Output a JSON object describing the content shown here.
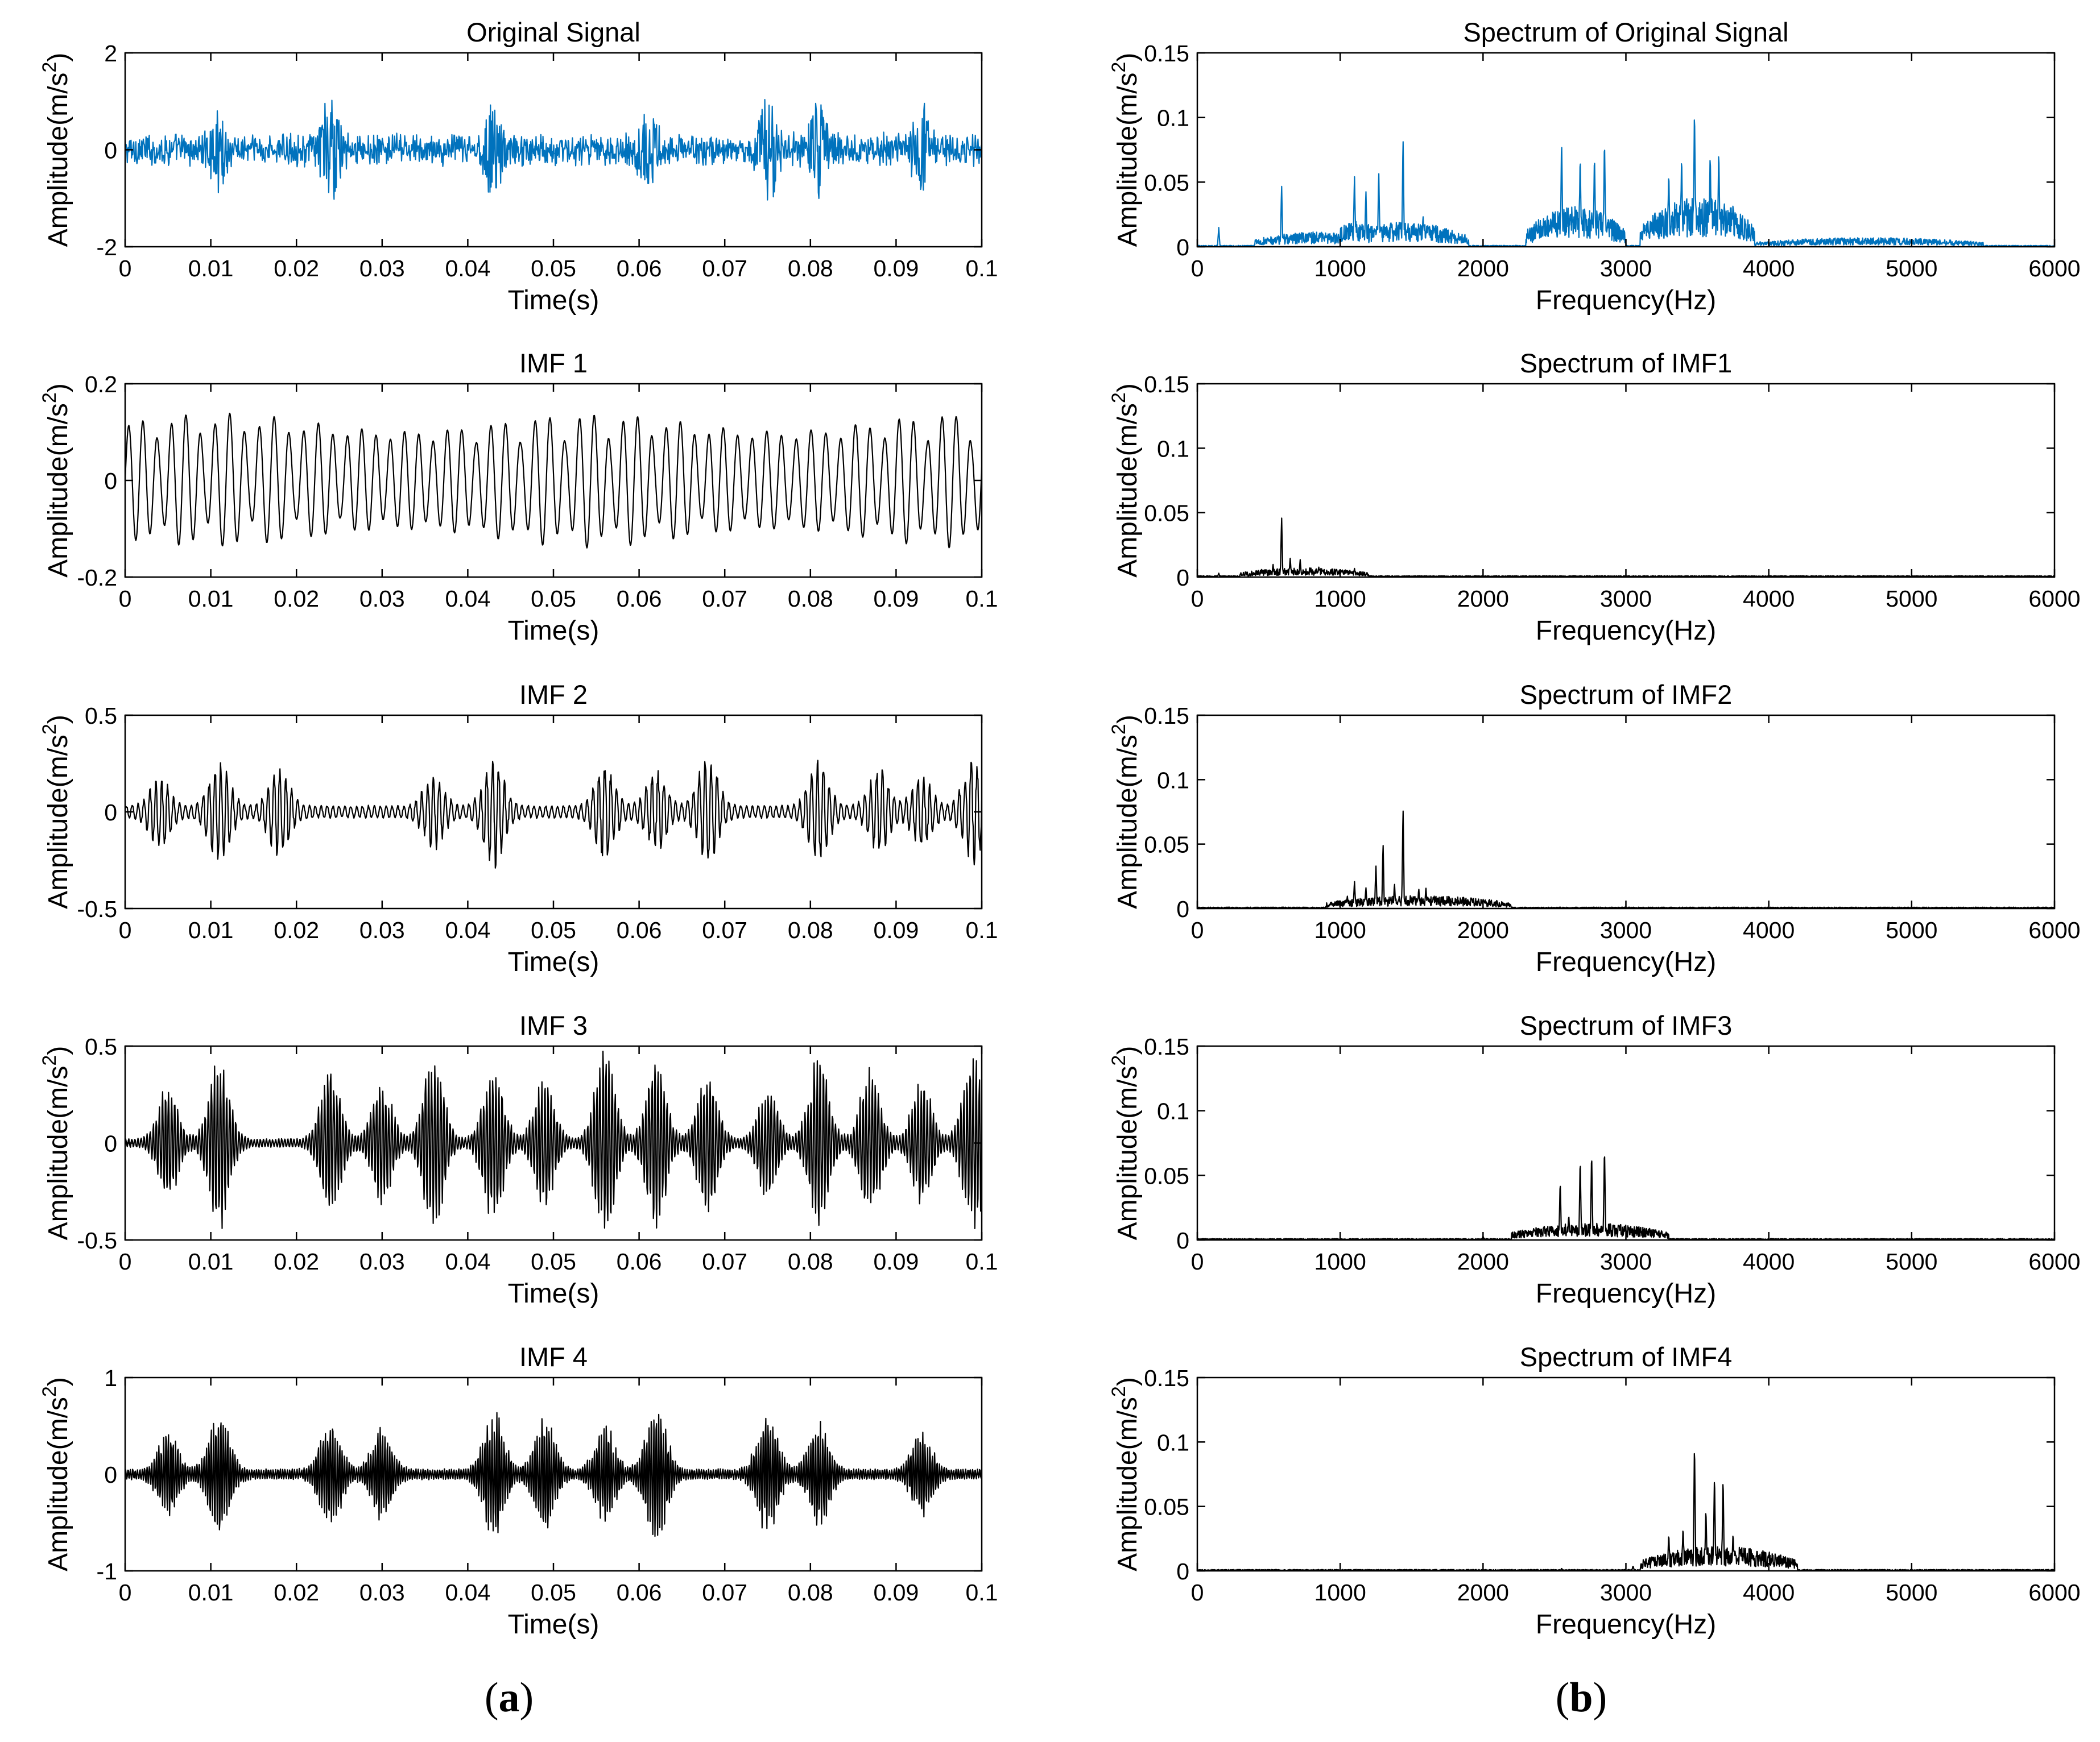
{
  "figure": {
    "panel_labels": {
      "a": "(a)",
      "b": "(b)",
      "a_letter": "a",
      "b_letter": "b"
    }
  },
  "colors": {
    "original": "#0072BD",
    "imf": "#000000"
  },
  "chart_data": [
    {
      "id": "time-original",
      "type": "line",
      "column": "a",
      "title": "Original Signal",
      "xlabel": "Time(s)",
      "ylabel": "Amplitude(m/s^2)",
      "xlim": [
        0,
        0.1
      ],
      "ylim": [
        -2,
        2
      ],
      "xticks": [
        "0",
        "0.01",
        "0.02",
        "0.03",
        "0.04",
        "0.05",
        "0.06",
        "0.07",
        "0.08",
        "0.09",
        "0.1"
      ],
      "yticks": [
        "-2",
        "0",
        "2"
      ],
      "color": "#0072BD",
      "signal": {
        "kind": "impulsive",
        "bursts": [
          0.011,
          0.024,
          0.043,
          0.061,
          0.075,
          0.081,
          0.093
        ],
        "peak": 1.3,
        "baseline": 0.25
      }
    },
    {
      "id": "time-imf1",
      "type": "line",
      "column": "a",
      "title": "IMF 1",
      "xlabel": "Time(s)",
      "ylabel": "Amplitude(m/s^2)",
      "xlim": [
        0,
        0.1
      ],
      "ylim": [
        -0.2,
        0.2
      ],
      "xticks": [
        "0",
        "0.01",
        "0.02",
        "0.03",
        "0.04",
        "0.05",
        "0.06",
        "0.07",
        "0.08",
        "0.09",
        "0.1"
      ],
      "yticks": [
        "-0.2",
        "0",
        "0.2"
      ],
      "color": "#000000",
      "signal": {
        "kind": "oscillation",
        "frequency_hz": 590,
        "peak": 0.14,
        "baseline": 0.06
      }
    },
    {
      "id": "time-imf2",
      "type": "line",
      "column": "a",
      "title": "IMF 2",
      "xlabel": "Time(s)",
      "ylabel": "Amplitude(m/s^2)",
      "xlim": [
        0,
        0.1
      ],
      "ylim": [
        -0.5,
        0.5
      ],
      "xticks": [
        "0",
        "0.01",
        "0.02",
        "0.03",
        "0.04",
        "0.05",
        "0.06",
        "0.07",
        "0.08",
        "0.09",
        "0.1"
      ],
      "yticks": [
        "-0.5",
        "0",
        "0.5"
      ],
      "color": "#000000",
      "signal": {
        "kind": "bursts",
        "frequency_hz": 1450,
        "bursts": [
          0.004,
          0.011,
          0.018,
          0.036,
          0.043,
          0.056,
          0.062,
          0.068,
          0.081,
          0.088,
          0.093,
          0.099
        ],
        "peak": 0.25,
        "baseline": 0.03
      }
    },
    {
      "id": "time-imf3",
      "type": "line",
      "column": "a",
      "title": "IMF 3",
      "xlabel": "Time(s)",
      "ylabel": "Amplitude(m/s^2)",
      "xlim": [
        0,
        0.1
      ],
      "ylim": [
        -0.5,
        0.5
      ],
      "xticks": [
        "0",
        "0.01",
        "0.02",
        "0.03",
        "0.04",
        "0.05",
        "0.06",
        "0.07",
        "0.08",
        "0.09",
        "0.1"
      ],
      "yticks": [
        "-0.5",
        "0",
        "0.5"
      ],
      "color": "#000000",
      "signal": {
        "kind": "bursts",
        "frequency_hz": 2800,
        "bursts": [
          0.005,
          0.011,
          0.024,
          0.03,
          0.036,
          0.043,
          0.049,
          0.056,
          0.062,
          0.068,
          0.075,
          0.081,
          0.087,
          0.093,
          0.099
        ],
        "peak": 0.45,
        "baseline": 0.02
      }
    },
    {
      "id": "time-imf4",
      "type": "line",
      "column": "a",
      "title": "IMF 4",
      "xlabel": "Time(s)",
      "ylabel": "Amplitude(m/s^2)",
      "xlim": [
        0,
        0.1
      ],
      "ylim": [
        -1,
        1
      ],
      "xticks": [
        "0",
        "0.01",
        "0.02",
        "0.03",
        "0.04",
        "0.05",
        "0.06",
        "0.07",
        "0.08",
        "0.09",
        "0.1"
      ],
      "yticks": [
        "-1",
        "0",
        "1"
      ],
      "color": "#000000",
      "signal": {
        "kind": "bursts",
        "frequency_hz": 3600,
        "bursts": [
          0.005,
          0.011,
          0.024,
          0.03,
          0.043,
          0.049,
          0.056,
          0.062,
          0.075,
          0.081,
          0.093
        ],
        "peak": 0.65,
        "baseline": 0.05
      }
    },
    {
      "id": "spectrum-original",
      "type": "line",
      "column": "b",
      "title": "Spectrum of Original Signal",
      "xlabel": "Frequency(Hz)",
      "ylabel": "Amplitude(m/s^2)",
      "xlim": [
        0,
        6000
      ],
      "ylim": [
        0,
        0.15
      ],
      "xticks": [
        "0",
        "1000",
        "2000",
        "3000",
        "4000",
        "5000",
        "6000"
      ],
      "yticks": [
        "0",
        "0.05",
        "0.1",
        "0.15"
      ],
      "color": "#0072BD",
      "peaks": [
        [
          150,
          0.015
        ],
        [
          590,
          0.048
        ],
        [
          1100,
          0.057
        ],
        [
          1180,
          0.045
        ],
        [
          1270,
          0.06
        ],
        [
          1440,
          0.087
        ],
        [
          1580,
          0.025
        ],
        [
          2550,
          0.087
        ],
        [
          2680,
          0.073
        ],
        [
          2780,
          0.074
        ],
        [
          2850,
          0.086
        ],
        [
          3300,
          0.06
        ],
        [
          3390,
          0.073
        ],
        [
          3480,
          0.111
        ],
        [
          3590,
          0.075
        ],
        [
          3650,
          0.078
        ],
        [
          3750,
          0.035
        ]
      ],
      "bands": [
        [
          400,
          1200,
          0.007
        ],
        [
          1000,
          1900,
          0.012
        ],
        [
          2300,
          3000,
          0.02
        ],
        [
          3100,
          3900,
          0.025
        ],
        [
          3900,
          5500,
          0.004
        ]
      ]
    },
    {
      "id": "spectrum-imf1",
      "type": "line",
      "column": "b",
      "title": "Spectrum of IMF1",
      "xlabel": "Frequency(Hz)",
      "ylabel": "Amplitude(m/s^2)",
      "xlim": [
        0,
        6000
      ],
      "ylim": [
        0,
        0.15
      ],
      "xticks": [
        "0",
        "1000",
        "2000",
        "3000",
        "4000",
        "5000",
        "6000"
      ],
      "yticks": [
        "0",
        "0.05",
        "0.1",
        "0.15"
      ],
      "color": "#000000",
      "peaks": [
        [
          150,
          0.003
        ],
        [
          450,
          0.006
        ],
        [
          530,
          0.01
        ],
        [
          590,
          0.047
        ],
        [
          650,
          0.015
        ],
        [
          720,
          0.014
        ],
        [
          850,
          0.008
        ],
        [
          1100,
          0.007
        ]
      ],
      "bands": [
        [
          300,
          1200,
          0.004
        ]
      ]
    },
    {
      "id": "spectrum-imf2",
      "type": "line",
      "column": "b",
      "title": "Spectrum of IMF2",
      "xlabel": "Frequency(Hz)",
      "ylabel": "Amplitude(m/s^2)",
      "xlim": [
        0,
        6000
      ],
      "ylim": [
        0,
        0.15
      ],
      "xticks": [
        "0",
        "1000",
        "2000",
        "3000",
        "4000",
        "5000",
        "6000"
      ],
      "yticks": [
        "0",
        "0.05",
        "0.1",
        "0.15"
      ],
      "color": "#000000",
      "peaks": [
        [
          1050,
          0.01
        ],
        [
          1100,
          0.022
        ],
        [
          1180,
          0.017
        ],
        [
          1250,
          0.035
        ],
        [
          1300,
          0.052
        ],
        [
          1380,
          0.02
        ],
        [
          1440,
          0.081
        ],
        [
          1550,
          0.016
        ],
        [
          1600,
          0.017
        ],
        [
          1750,
          0.008
        ],
        [
          1850,
          0.005
        ],
        [
          2000,
          0.004
        ]
      ],
      "bands": [
        [
          900,
          2200,
          0.006
        ]
      ]
    },
    {
      "id": "spectrum-imf3",
      "type": "line",
      "column": "b",
      "title": "Spectrum of IMF3",
      "xlabel": "Frequency(Hz)",
      "ylabel": "Amplitude(m/s^2)",
      "xlim": [
        0,
        6000
      ],
      "ylim": [
        0,
        0.15
      ],
      "xticks": [
        "0",
        "1000",
        "2000",
        "3000",
        "4000",
        "5000",
        "6000"
      ],
      "yticks": [
        "0",
        "0.05",
        "0.1",
        "0.15"
      ],
      "color": "#000000",
      "peaks": [
        [
          2000,
          0.003
        ],
        [
          2400,
          0.005
        ],
        [
          2540,
          0.047
        ],
        [
          2600,
          0.02
        ],
        [
          2680,
          0.065
        ],
        [
          2760,
          0.07
        ],
        [
          2850,
          0.074
        ],
        [
          2950,
          0.012
        ],
        [
          3000,
          0.008
        ],
        [
          3250,
          0.008
        ]
      ],
      "bands": [
        [
          2200,
          3300,
          0.008
        ]
      ]
    },
    {
      "id": "spectrum-imf4",
      "type": "line",
      "column": "b",
      "title": "Spectrum of IMF4",
      "xlabel": "Frequency(Hz)",
      "ylabel": "Amplitude(m/s^2)",
      "xlim": [
        0,
        6000
      ],
      "ylim": [
        0,
        0.15
      ],
      "xticks": [
        "0",
        "1000",
        "2000",
        "3000",
        "4000",
        "5000",
        "6000"
      ],
      "yticks": [
        "0",
        "0.05",
        "0.1",
        "0.15"
      ],
      "color": "#000000",
      "peaks": [
        [
          2550,
          0.002
        ],
        [
          3050,
          0.004
        ],
        [
          3300,
          0.03
        ],
        [
          3400,
          0.035
        ],
        [
          3480,
          0.103
        ],
        [
          3560,
          0.05
        ],
        [
          3620,
          0.077
        ],
        [
          3680,
          0.075
        ],
        [
          3750,
          0.03
        ],
        [
          3800,
          0.015
        ]
      ],
      "bands": [
        [
          3100,
          4200,
          0.012
        ]
      ]
    }
  ]
}
